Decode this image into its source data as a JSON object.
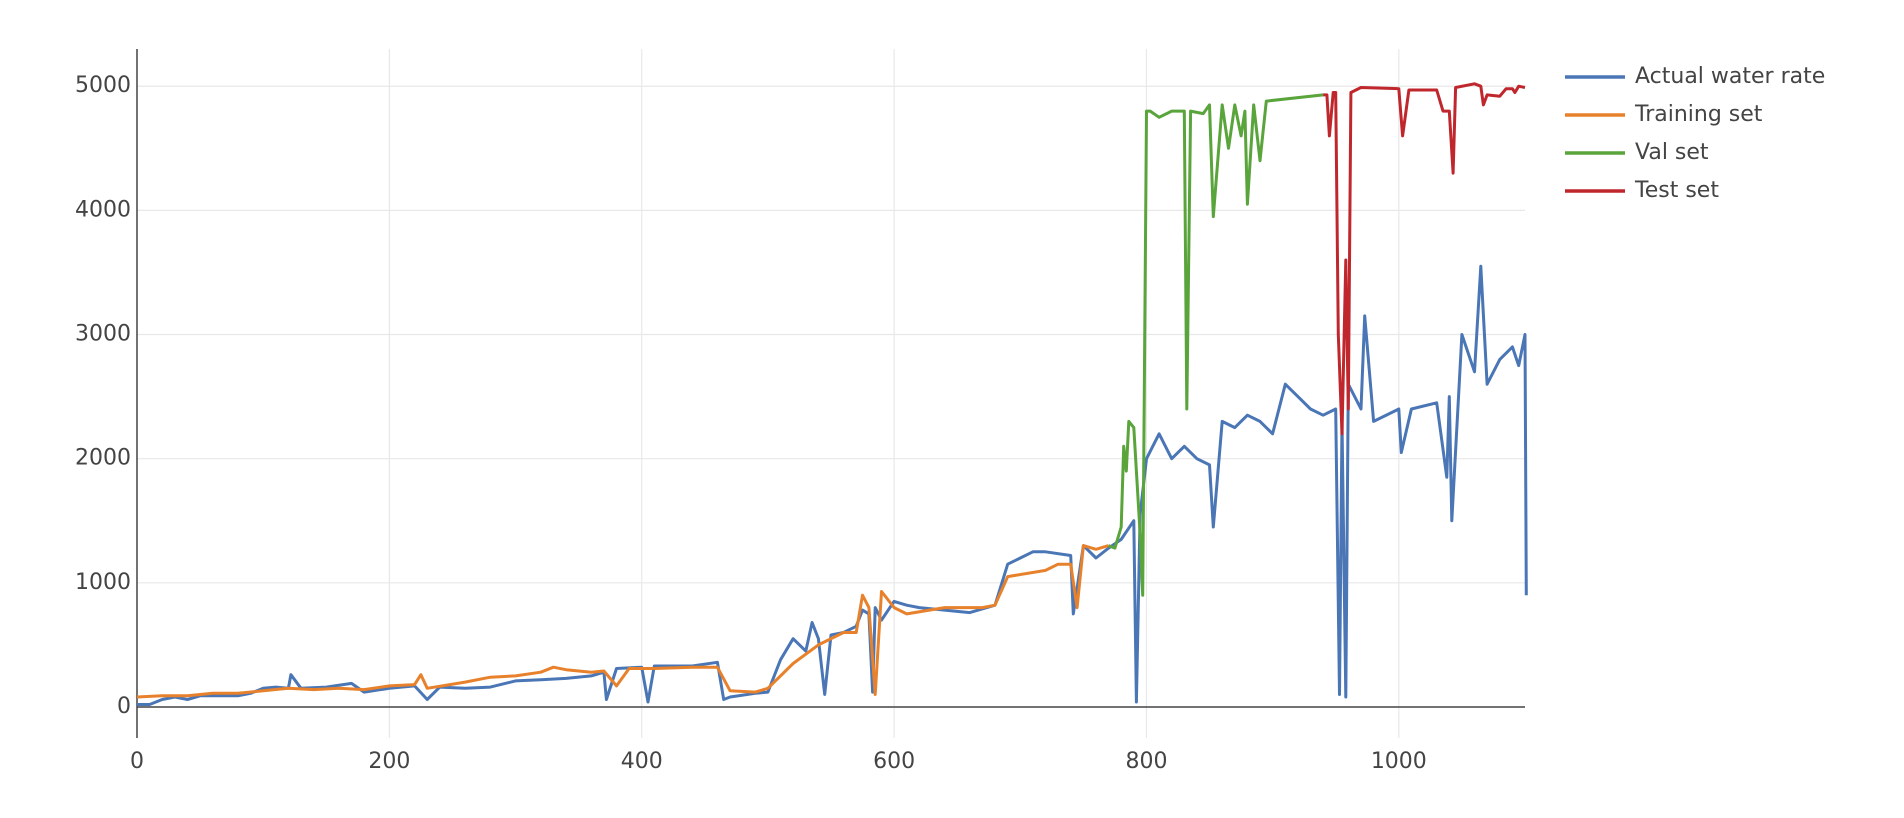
{
  "chart_data": {
    "type": "line",
    "xlim": [
      0,
      1100
    ],
    "ylim": [
      -250,
      5300
    ],
    "xticks": [
      0,
      200,
      400,
      600,
      800,
      1000
    ],
    "yticks": [
      0,
      1000,
      2000,
      3000,
      4000,
      5000
    ],
    "grid": true,
    "legend": "top-right-outside",
    "series": [
      {
        "name": "Actual water rate",
        "color": "#4a76b6",
        "x": [
          0,
          10,
          20,
          30,
          40,
          50,
          60,
          70,
          80,
          90,
          100,
          110,
          120,
          122,
          130,
          150,
          170,
          180,
          200,
          220,
          230,
          240,
          260,
          280,
          300,
          320,
          340,
          360,
          370,
          372,
          380,
          400,
          405,
          410,
          440,
          460,
          465,
          470,
          490,
          500,
          510,
          520,
          530,
          535,
          540,
          545,
          550,
          560,
          570,
          575,
          580,
          583,
          585,
          590,
          600,
          610,
          620,
          640,
          660,
          680,
          690,
          700,
          710,
          720,
          740,
          742,
          750,
          760,
          770,
          780,
          790,
          792,
          795,
          800,
          810,
          820,
          830,
          840,
          850,
          853,
          860,
          870,
          880,
          890,
          900,
          910,
          920,
          930,
          940,
          950,
          953,
          955,
          958,
          960,
          970,
          973,
          980,
          1000,
          1002,
          1010,
          1030,
          1038,
          1040,
          1042,
          1050,
          1060,
          1065,
          1070,
          1080,
          1090,
          1095,
          1100,
          1101
        ],
        "values": [
          20,
          20,
          60,
          80,
          60,
          90,
          90,
          90,
          90,
          110,
          150,
          160,
          150,
          260,
          150,
          160,
          190,
          120,
          150,
          170,
          60,
          160,
          150,
          160,
          210,
          220,
          230,
          250,
          280,
          60,
          310,
          320,
          40,
          330,
          330,
          360,
          60,
          80,
          110,
          120,
          380,
          550,
          450,
          680,
          550,
          100,
          580,
          600,
          650,
          780,
          750,
          120,
          800,
          700,
          850,
          820,
          800,
          780,
          760,
          820,
          1150,
          1200,
          1250,
          1250,
          1220,
          750,
          1300,
          1200,
          1280,
          1350,
          1500,
          40,
          1550,
          2000,
          2200,
          2000,
          2100,
          2000,
          1950,
          1450,
          2300,
          2250,
          2350,
          2300,
          2200,
          2600,
          2500,
          2400,
          2350,
          2400,
          100,
          2300,
          80,
          2600,
          2400,
          3150,
          2300,
          2400,
          2050,
          2400,
          2450,
          1850,
          2500,
          1500,
          3000,
          2700,
          3550,
          2600,
          2800,
          2900,
          2750,
          3000,
          900
        ]
      },
      {
        "name": "Training set",
        "color": "#e8812b",
        "x": [
          0,
          20,
          40,
          60,
          80,
          100,
          120,
          140,
          160,
          180,
          200,
          220,
          225,
          230,
          260,
          280,
          300,
          320,
          330,
          340,
          360,
          370,
          380,
          390,
          410,
          440,
          460,
          470,
          490,
          500,
          520,
          540,
          560,
          570,
          575,
          580,
          585,
          590,
          600,
          610,
          640,
          670,
          680,
          690,
          720,
          730,
          740,
          745,
          750,
          760,
          770
        ],
        "values": [
          80,
          90,
          90,
          110,
          110,
          130,
          150,
          140,
          150,
          140,
          170,
          180,
          260,
          150,
          200,
          240,
          250,
          280,
          320,
          300,
          280,
          290,
          170,
          310,
          310,
          320,
          320,
          130,
          120,
          150,
          350,
          500,
          600,
          600,
          900,
          800,
          100,
          930,
          800,
          750,
          800,
          800,
          820,
          1050,
          1100,
          1150,
          1150,
          800,
          1300,
          1270,
          1300
        ]
      },
      {
        "name": "Val set",
        "color": "#5aa43c",
        "x": [
          770,
          775,
          780,
          782,
          784,
          786,
          790,
          795,
          797,
          800,
          803,
          810,
          820,
          830,
          832,
          835,
          845,
          850,
          853,
          860,
          865,
          870,
          875,
          878,
          880,
          885,
          890,
          895,
          940
        ],
        "values": [
          1300,
          1280,
          1450,
          2100,
          1900,
          2300,
          2250,
          1400,
          900,
          4800,
          4800,
          4750,
          4800,
          4800,
          2400,
          4800,
          4780,
          4850,
          3950,
          4850,
          4500,
          4850,
          4600,
          4800,
          4050,
          4850,
          4400,
          4880,
          4930
        ]
      },
      {
        "name": "Test set",
        "color": "#c0272d",
        "x": [
          940,
          943,
          945,
          948,
          950,
          952,
          955,
          958,
          960,
          962,
          970,
          1000,
          1003,
          1008,
          1030,
          1035,
          1040,
          1043,
          1045,
          1060,
          1065,
          1067,
          1070,
          1080,
          1085,
          1090,
          1092,
          1095,
          1100
        ],
        "values": [
          4930,
          4930,
          4600,
          4950,
          4950,
          3000,
          2200,
          3600,
          2400,
          4950,
          4990,
          4980,
          4600,
          4970,
          4970,
          4800,
          4800,
          4300,
          4990,
          5020,
          5000,
          4850,
          4930,
          4920,
          4980,
          4980,
          4950,
          5000,
          4990
        ]
      }
    ]
  }
}
